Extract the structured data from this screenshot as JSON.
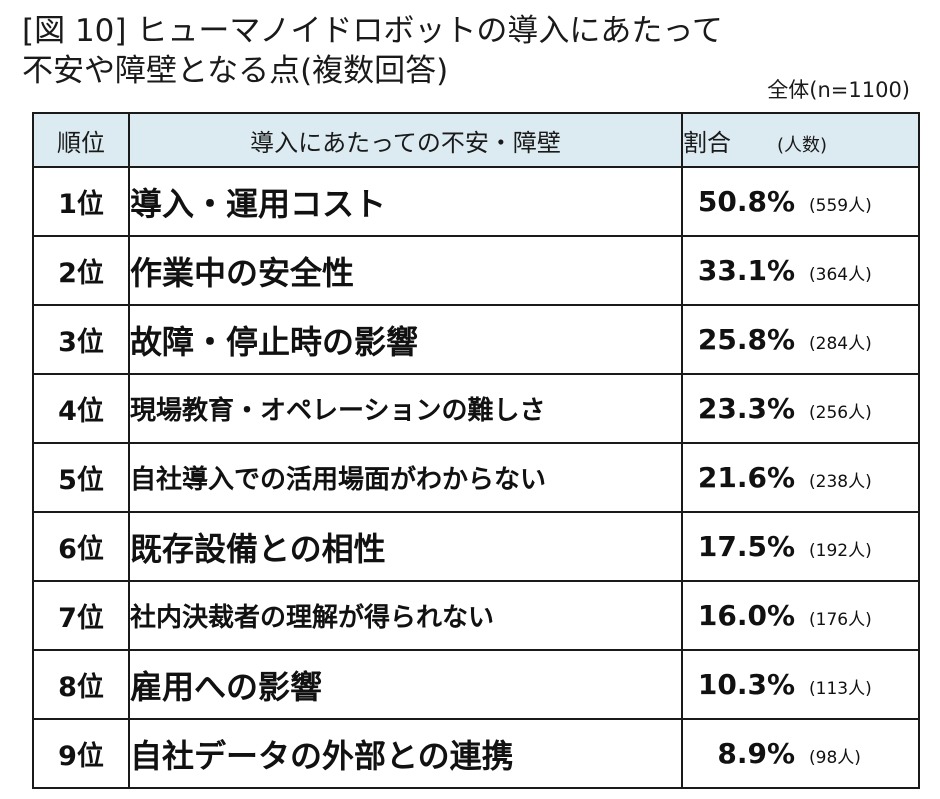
{
  "title": {
    "line1": "[図 10] ヒューマノイドロボットの導入にあたって",
    "line2": "不安や障壁となる点(複数回答)"
  },
  "total_note": "全体(n=1100)",
  "table": {
    "headers": {
      "rank": "順位",
      "item": "導入にあたっての不安・障壁",
      "pct": "割合",
      "count": "(人数)"
    },
    "rows": [
      {
        "rank": "1位",
        "item": "導入・運用コスト",
        "pct": "50.8%",
        "count": "(559人)"
      },
      {
        "rank": "2位",
        "item": "作業中の安全性",
        "pct": "33.1%",
        "count": "(364人)"
      },
      {
        "rank": "3位",
        "item": "故障・停止時の影響",
        "pct": "25.8%",
        "count": "(284人)"
      },
      {
        "rank": "4位",
        "item": "現場教育・オペレーションの難しさ",
        "pct": "23.3%",
        "count": "(256人)"
      },
      {
        "rank": "5位",
        "item": "自社導入での活用場面がわからない",
        "pct": "21.6%",
        "count": "(238人)"
      },
      {
        "rank": "6位",
        "item": "既存設備との相性",
        "pct": "17.5%",
        "count": "(192人)"
      },
      {
        "rank": "7位",
        "item": "社内決裁者の理解が得られない",
        "pct": "16.0%",
        "count": "(176人)"
      },
      {
        "rank": "8位",
        "item": "雇用への影響",
        "pct": "10.3%",
        "count": "(113人)"
      },
      {
        "rank": "9位",
        "item": "自社データの外部との連携",
        "pct": "8.9%",
        "count": "(98人)"
      }
    ]
  }
}
